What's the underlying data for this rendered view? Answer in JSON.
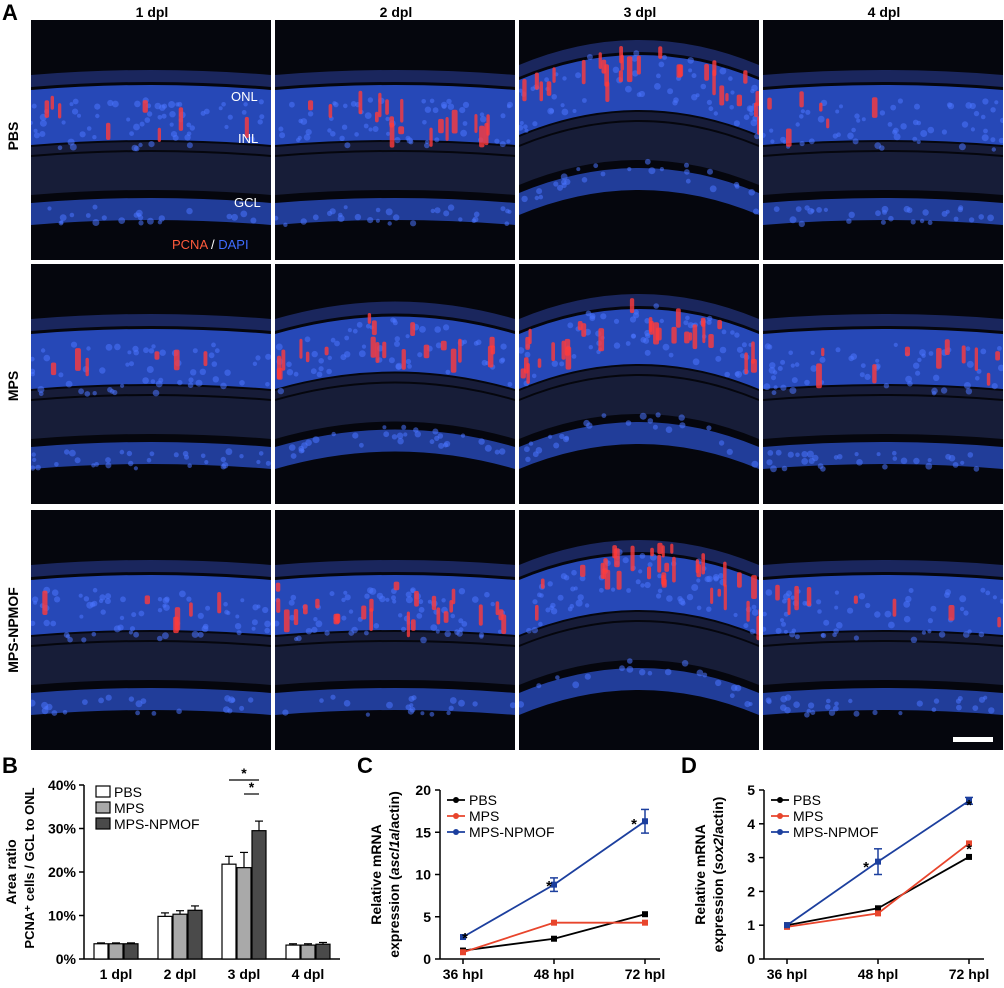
{
  "panels": {
    "a_letter": "A",
    "b_letter": "B",
    "c_letter": "C",
    "d_letter": "D"
  },
  "micrographs": {
    "columns": [
      "1 dpl",
      "2 dpl",
      "3 dpl",
      "4 dpl"
    ],
    "rows": [
      "PBS",
      "MPS",
      "MPS-NPMOF"
    ],
    "layer_labels": [
      "ONL",
      "INL",
      "GCL"
    ],
    "stain_pcna": "PCNA",
    "stain_sep": " / ",
    "stain_dapi": "DAPI",
    "colors": {
      "pcna": "#ff3b3b",
      "dapi": "#2d55d6",
      "background": "#05060d"
    }
  },
  "chart_data": [
    {
      "type": "bar",
      "panel": "B",
      "title": "",
      "ylabel_line1": "Area ratio",
      "ylabel_line2": "PCNA⁺ cells / GCL to ONL",
      "categories": [
        "1 dpl",
        "2 dpl",
        "3 dpl",
        "4 dpl"
      ],
      "yticks": [
        "0%",
        "10%",
        "20%",
        "30%",
        "40%"
      ],
      "ylim": [
        0,
        40
      ],
      "series": [
        {
          "name": "PBS",
          "color": "#ffffff",
          "values": [
            3.5,
            9.8,
            21.8,
            3.2
          ],
          "errors": [
            0.2,
            0.8,
            1.8,
            0.3
          ]
        },
        {
          "name": "MPS",
          "color": "#a9a9a9",
          "values": [
            3.5,
            10.3,
            21.0,
            3.2
          ],
          "errors": [
            0.2,
            0.8,
            3.5,
            0.3
          ]
        },
        {
          "name": "MPS-NPMOF",
          "color": "#4a4a4a",
          "values": [
            3.5,
            11.2,
            29.5,
            3.4
          ],
          "errors": [
            0.2,
            1.0,
            2.2,
            0.4
          ]
        }
      ],
      "significance": [
        "*",
        "*"
      ],
      "legend_position": "top-left"
    },
    {
      "type": "line",
      "panel": "C",
      "ylabel_line1": "Relative mRNA",
      "ylabel_line2_prefix": "expression (",
      "ylabel_gene": "ascl1a",
      "ylabel_line2_suffix": "/actin)",
      "x": [
        "36 hpl",
        "48 hpl",
        "72 hpl"
      ],
      "yticks": [
        "0",
        "5",
        "10",
        "15",
        "20"
      ],
      "ylim": [
        0,
        20
      ],
      "series": [
        {
          "name": "PBS",
          "color": "#000000",
          "values": [
            1.0,
            2.4,
            5.3
          ],
          "errors": [
            0,
            0,
            0
          ]
        },
        {
          "name": "MPS",
          "color": "#e8452c",
          "values": [
            0.8,
            4.3,
            4.3
          ],
          "errors": [
            0,
            0,
            0
          ]
        },
        {
          "name": "MPS-NPMOF",
          "color": "#1c3f9e",
          "values": [
            2.6,
            8.8,
            16.3
          ],
          "errors": [
            0,
            0.8,
            1.4
          ]
        }
      ],
      "significance": [
        "*",
        "*",
        "*"
      ],
      "legend_position": "top-left"
    },
    {
      "type": "line",
      "panel": "D",
      "ylabel_line1": "Relative mRNA",
      "ylabel_line2_prefix": "expression (",
      "ylabel_gene": "sox2",
      "ylabel_line2_suffix": "/actin)",
      "x": [
        "36 hpl",
        "48 hpl",
        "72 hpl"
      ],
      "yticks": [
        "0",
        "1",
        "2",
        "3",
        "4",
        "5"
      ],
      "ylim": [
        0,
        5
      ],
      "series": [
        {
          "name": "PBS",
          "color": "#000000",
          "values": [
            1.0,
            1.5,
            3.02
          ],
          "errors": [
            0,
            0,
            0
          ]
        },
        {
          "name": "MPS",
          "color": "#e8452c",
          "values": [
            0.95,
            1.35,
            3.42
          ],
          "errors": [
            0,
            0,
            0
          ]
        },
        {
          "name": "MPS-NPMOF",
          "color": "#1c3f9e",
          "values": [
            1.0,
            2.88,
            4.68
          ],
          "errors": [
            0,
            0.38,
            0.1
          ]
        }
      ],
      "significance": [
        "*",
        "*",
        "*"
      ],
      "legend_position": "top-left"
    }
  ]
}
